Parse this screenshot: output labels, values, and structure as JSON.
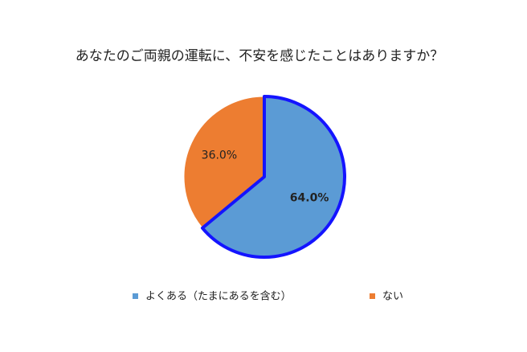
{
  "chart_data": {
    "type": "pie",
    "title": "あなたのご両親の運転に、不安を感じたことはありますか？",
    "categories": [
      "よくある（たまにあるを含む）",
      "ない"
    ],
    "values": [
      64.0,
      36.0
    ],
    "value_labels": [
      "64.0%",
      "36.0%"
    ],
    "colors": [
      "#5b9bd5",
      "#ed7d31"
    ],
    "legend": "bottom"
  }
}
